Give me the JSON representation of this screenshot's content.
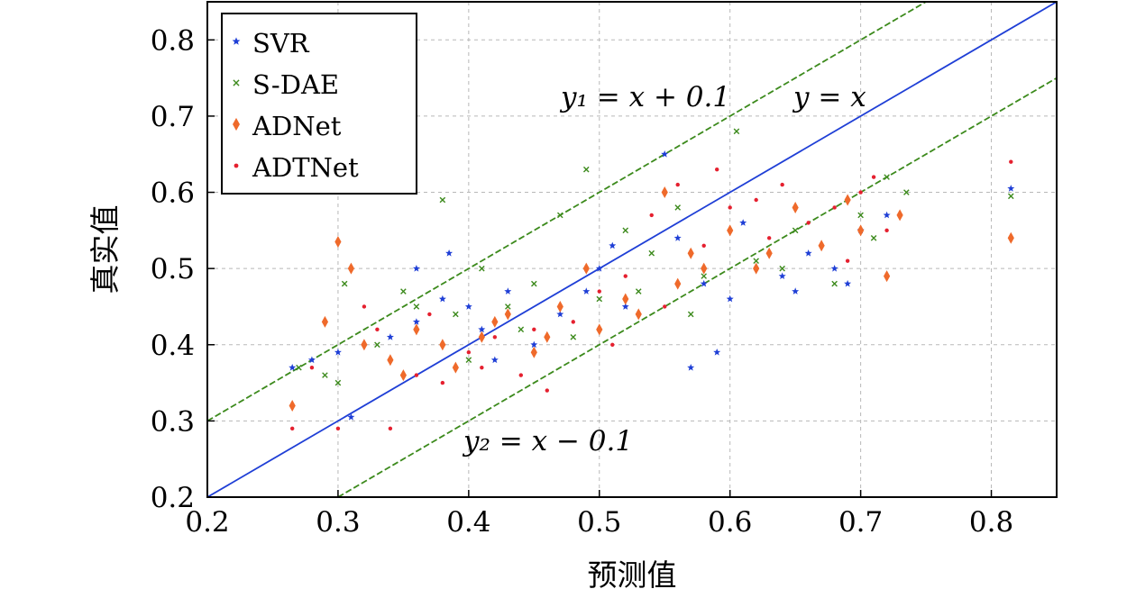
{
  "chart_data": {
    "type": "scatter",
    "xlabel": "预测值",
    "ylabel": "真实值",
    "xlim": [
      0.2,
      0.85
    ],
    "ylim": [
      0.2,
      0.85
    ],
    "xticks": [
      "0.2",
      "0.3",
      "0.4",
      "0.5",
      "0.6",
      "0.7",
      "0.8"
    ],
    "yticks": [
      "0.2",
      "0.3",
      "0.4",
      "0.5",
      "0.6",
      "0.7",
      "0.8"
    ],
    "grid": true,
    "legend_position": "top-left",
    "series": [
      {
        "name": "SVR",
        "marker": "star",
        "color": "#1f3fd6",
        "points": [
          [
            0.265,
            0.37
          ],
          [
            0.28,
            0.38
          ],
          [
            0.3,
            0.39
          ],
          [
            0.31,
            0.305
          ],
          [
            0.34,
            0.41
          ],
          [
            0.36,
            0.43
          ],
          [
            0.38,
            0.46
          ],
          [
            0.385,
            0.52
          ],
          [
            0.4,
            0.45
          ],
          [
            0.41,
            0.42
          ],
          [
            0.43,
            0.47
          ],
          [
            0.45,
            0.4
          ],
          [
            0.47,
            0.44
          ],
          [
            0.49,
            0.47
          ],
          [
            0.5,
            0.5
          ],
          [
            0.51,
            0.53
          ],
          [
            0.55,
            0.65
          ],
          [
            0.56,
            0.54
          ],
          [
            0.57,
            0.37
          ],
          [
            0.58,
            0.48
          ],
          [
            0.6,
            0.46
          ],
          [
            0.61,
            0.56
          ],
          [
            0.64,
            0.49
          ],
          [
            0.66,
            0.52
          ],
          [
            0.68,
            0.5
          ],
          [
            0.7,
            0.55
          ],
          [
            0.72,
            0.57
          ],
          [
            0.815,
            0.605
          ],
          [
            0.36,
            0.5
          ],
          [
            0.42,
            0.38
          ],
          [
            0.52,
            0.45
          ],
          [
            0.59,
            0.39
          ],
          [
            0.65,
            0.47
          ],
          [
            0.69,
            0.48
          ]
        ]
      },
      {
        "name": "S-DAE",
        "marker": "x",
        "color": "#3c8a1c",
        "points": [
          [
            0.27,
            0.37
          ],
          [
            0.29,
            0.36
          ],
          [
            0.3,
            0.35
          ],
          [
            0.305,
            0.48
          ],
          [
            0.33,
            0.4
          ],
          [
            0.35,
            0.47
          ],
          [
            0.38,
            0.59
          ],
          [
            0.39,
            0.44
          ],
          [
            0.41,
            0.5
          ],
          [
            0.43,
            0.45
          ],
          [
            0.45,
            0.48
          ],
          [
            0.47,
            0.57
          ],
          [
            0.49,
            0.63
          ],
          [
            0.5,
            0.46
          ],
          [
            0.52,
            0.55
          ],
          [
            0.54,
            0.52
          ],
          [
            0.56,
            0.58
          ],
          [
            0.58,
            0.49
          ],
          [
            0.605,
            0.68
          ],
          [
            0.62,
            0.51
          ],
          [
            0.65,
            0.55
          ],
          [
            0.68,
            0.48
          ],
          [
            0.7,
            0.57
          ],
          [
            0.72,
            0.62
          ],
          [
            0.735,
            0.6
          ],
          [
            0.815,
            0.595
          ],
          [
            0.36,
            0.45
          ],
          [
            0.4,
            0.38
          ],
          [
            0.44,
            0.42
          ],
          [
            0.48,
            0.41
          ],
          [
            0.53,
            0.47
          ],
          [
            0.57,
            0.44
          ],
          [
            0.64,
            0.5
          ],
          [
            0.71,
            0.54
          ]
        ]
      },
      {
        "name": "ADNet",
        "marker": "diamond",
        "color": "#ef6a2b",
        "points": [
          [
            0.265,
            0.32
          ],
          [
            0.29,
            0.43
          ],
          [
            0.3,
            0.535
          ],
          [
            0.31,
            0.5
          ],
          [
            0.32,
            0.4
          ],
          [
            0.34,
            0.38
          ],
          [
            0.36,
            0.42
          ],
          [
            0.38,
            0.4
          ],
          [
            0.39,
            0.37
          ],
          [
            0.41,
            0.41
          ],
          [
            0.43,
            0.44
          ],
          [
            0.45,
            0.39
          ],
          [
            0.47,
            0.45
          ],
          [
            0.49,
            0.5
          ],
          [
            0.5,
            0.42
          ],
          [
            0.52,
            0.46
          ],
          [
            0.55,
            0.6
          ],
          [
            0.56,
            0.48
          ],
          [
            0.58,
            0.5
          ],
          [
            0.6,
            0.55
          ],
          [
            0.63,
            0.52
          ],
          [
            0.65,
            0.58
          ],
          [
            0.67,
            0.53
          ],
          [
            0.69,
            0.59
          ],
          [
            0.72,
            0.49
          ],
          [
            0.73,
            0.57
          ],
          [
            0.815,
            0.54
          ],
          [
            0.35,
            0.36
          ],
          [
            0.42,
            0.43
          ],
          [
            0.46,
            0.41
          ],
          [
            0.53,
            0.44
          ],
          [
            0.57,
            0.52
          ],
          [
            0.62,
            0.5
          ],
          [
            0.7,
            0.55
          ]
        ]
      },
      {
        "name": "ADTNet",
        "marker": "dot",
        "color": "#e5202f",
        "points": [
          [
            0.265,
            0.29
          ],
          [
            0.28,
            0.37
          ],
          [
            0.3,
            0.29
          ],
          [
            0.32,
            0.45
          ],
          [
            0.34,
            0.29
          ],
          [
            0.36,
            0.36
          ],
          [
            0.38,
            0.35
          ],
          [
            0.4,
            0.39
          ],
          [
            0.42,
            0.41
          ],
          [
            0.44,
            0.36
          ],
          [
            0.46,
            0.34
          ],
          [
            0.48,
            0.43
          ],
          [
            0.5,
            0.47
          ],
          [
            0.52,
            0.49
          ],
          [
            0.54,
            0.57
          ],
          [
            0.56,
            0.61
          ],
          [
            0.58,
            0.53
          ],
          [
            0.6,
            0.58
          ],
          [
            0.62,
            0.59
          ],
          [
            0.64,
            0.61
          ],
          [
            0.66,
            0.56
          ],
          [
            0.68,
            0.58
          ],
          [
            0.7,
            0.6
          ],
          [
            0.72,
            0.55
          ],
          [
            0.815,
            0.64
          ],
          [
            0.33,
            0.42
          ],
          [
            0.37,
            0.44
          ],
          [
            0.41,
            0.37
          ],
          [
            0.45,
            0.42
          ],
          [
            0.51,
            0.4
          ],
          [
            0.55,
            0.45
          ],
          [
            0.59,
            0.63
          ],
          [
            0.63,
            0.54
          ],
          [
            0.69,
            0.51
          ],
          [
            0.71,
            0.62
          ]
        ]
      }
    ],
    "reference_lines": [
      {
        "equation": "y = x",
        "slope": 1,
        "intercept": 0,
        "color": "#1f3fd6",
        "style": "solid"
      },
      {
        "equation": "y₁ = x + 0.1",
        "slope": 1,
        "intercept": 0.1,
        "color": "#3c8a1c",
        "style": "dashed"
      },
      {
        "equation": "y₂ = x − 0.1",
        "slope": 1,
        "intercept": -0.1,
        "color": "#3c8a1c",
        "style": "dashed"
      }
    ],
    "annotations": [
      "y₁ = x + 0.1",
      "y = x",
      "y₂ = x − 0.1"
    ]
  }
}
